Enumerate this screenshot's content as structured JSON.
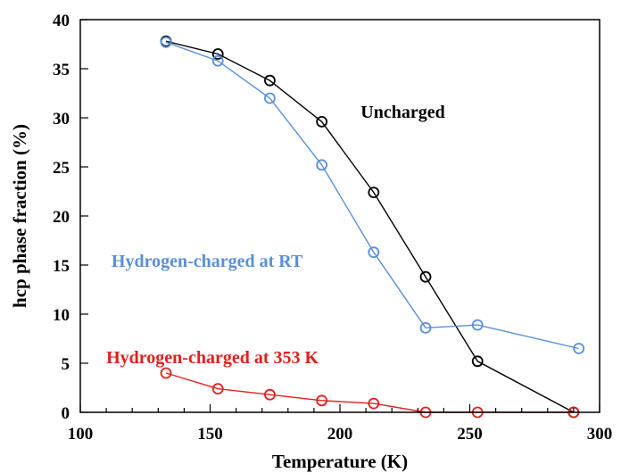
{
  "chart_data": {
    "type": "line",
    "title": "",
    "xlabel": "Temperature (K)",
    "ylabel": "hcp phase fraction (%)",
    "xlim": [
      100,
      300
    ],
    "ylim": [
      0,
      40
    ],
    "xticks": [
      100,
      150,
      200,
      250,
      300
    ],
    "yticks": [
      0,
      5,
      10,
      15,
      20,
      25,
      30,
      35,
      40
    ],
    "grid": false,
    "legend": "inline labels next to curves",
    "series": [
      {
        "name": "Uncharged",
        "color": "#000000",
        "marker": "open-circle",
        "x": [
          133,
          153,
          173,
          193,
          213,
          233,
          253,
          290
        ],
        "y": [
          37.8,
          36.5,
          33.8,
          29.6,
          22.4,
          13.8,
          5.2,
          0.0
        ]
      },
      {
        "name": "Hydrogen-charged at RT",
        "color": "#5b8fd6",
        "marker": "open-circle",
        "x": [
          133,
          153,
          173,
          193,
          213,
          233,
          253,
          292
        ],
        "y": [
          37.7,
          35.8,
          32.0,
          25.2,
          16.3,
          8.6,
          8.9,
          6.5
        ]
      },
      {
        "name": "Hydrogen-charged at 353 K",
        "color": "#e0201c",
        "marker": "open-circle",
        "x": [
          133,
          153,
          173,
          193,
          213,
          233,
          253,
          290
        ],
        "y": [
          4.0,
          2.4,
          1.8,
          1.2,
          0.9,
          0.0,
          0.0,
          0.0
        ]
      }
    ]
  }
}
